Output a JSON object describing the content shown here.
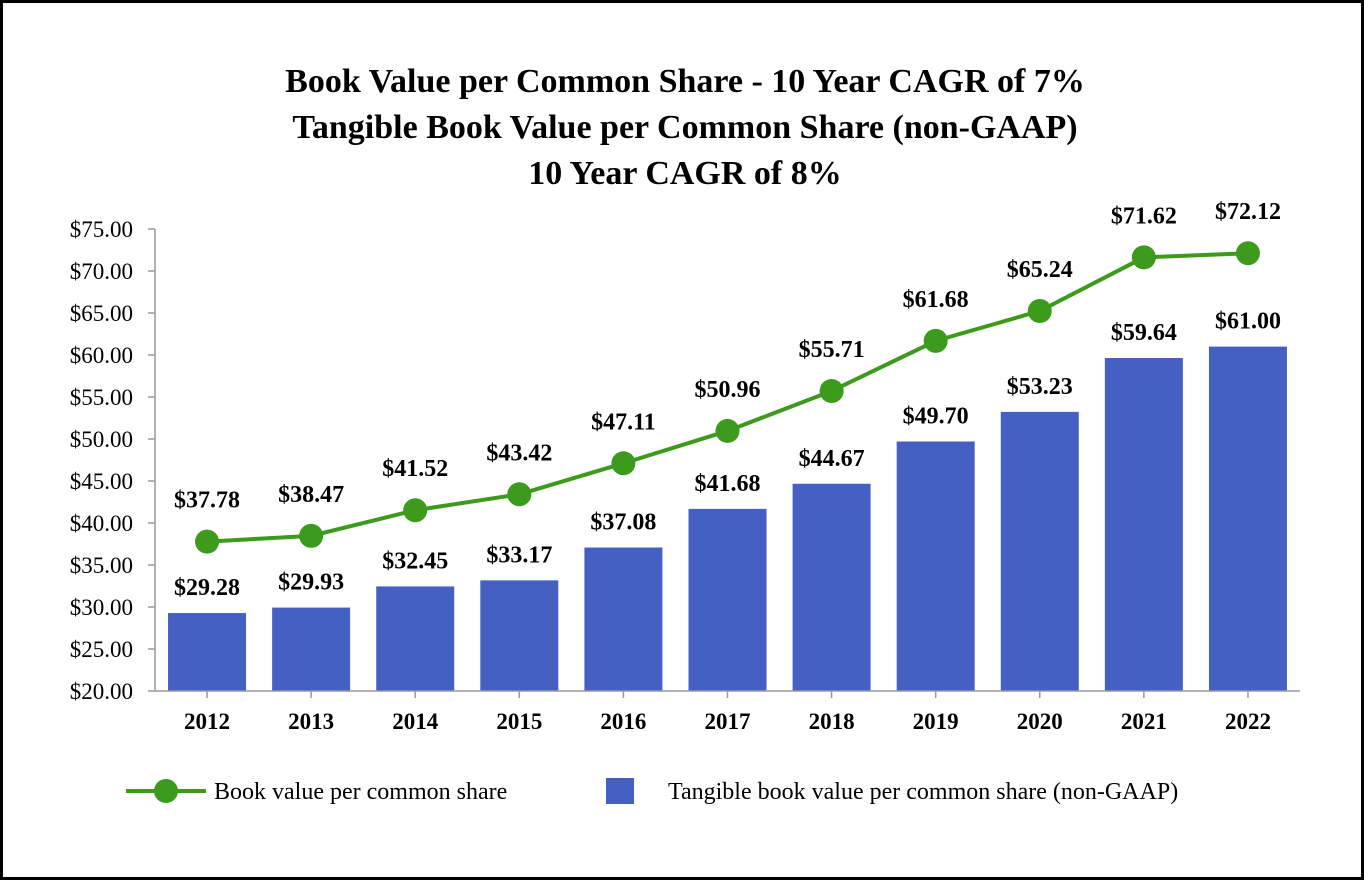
{
  "chart_data": {
    "type": "bar",
    "title_lines": [
      "Book Value per Common Share - 10 Year CAGR of 7%",
      "Tangible Book Value per Common Share (non-GAAP)",
      "10 Year CAGR of 8%"
    ],
    "categories": [
      "2012",
      "2013",
      "2014",
      "2015",
      "2016",
      "2017",
      "2018",
      "2019",
      "2020",
      "2021",
      "2022"
    ],
    "ylim": [
      20,
      75
    ],
    "yticks": [
      "$20.00",
      "$25.00",
      "$30.00",
      "$35.00",
      "$40.00",
      "$45.00",
      "$50.00",
      "$55.00",
      "$60.00",
      "$65.00",
      "$70.00",
      "$75.00"
    ],
    "ytick_values": [
      20,
      25,
      30,
      35,
      40,
      45,
      50,
      55,
      60,
      65,
      70,
      75
    ],
    "grid": false,
    "legend_position": "bottom",
    "series": [
      {
        "name": "Book value per common share",
        "type": "line",
        "color": "#3c9a1c",
        "values": [
          37.78,
          38.47,
          41.52,
          43.42,
          47.11,
          50.96,
          55.71,
          61.68,
          65.24,
          71.62,
          72.12
        ],
        "labels": [
          "$37.78",
          "$38.47",
          "$41.52",
          "$43.42",
          "$47.11",
          "$50.96",
          "$55.71",
          "$61.68",
          "$65.24",
          "$71.62",
          "$72.12"
        ]
      },
      {
        "name": "Tangible book value per common share (non-GAAP)",
        "type": "bar",
        "color": "#4460c2",
        "values": [
          29.28,
          29.93,
          32.45,
          33.17,
          37.08,
          41.68,
          44.67,
          49.7,
          53.23,
          59.64,
          61.0
        ],
        "labels": [
          "$29.28",
          "$29.93",
          "$32.45",
          "$33.17",
          "$37.08",
          "$41.68",
          "$44.67",
          "$49.70",
          "$53.23",
          "$59.64",
          "$61.00"
        ]
      }
    ]
  }
}
